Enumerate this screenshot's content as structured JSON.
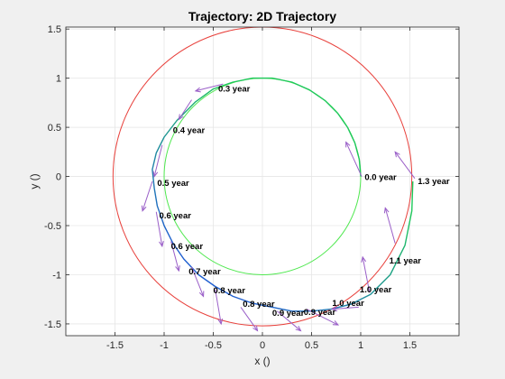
{
  "chart_data": {
    "type": "line",
    "title": "Trajectory: 2D Trajectory",
    "xlabel": "x ()",
    "ylabel": "y ()",
    "xlim": [
      -2.0,
      2.0
    ],
    "ylim": [
      -1.62,
      1.52
    ],
    "xticks": [
      -1.5,
      -1,
      -0.5,
      0,
      0.5,
      1,
      1.5
    ],
    "xtick_labels": [
      "-1.5",
      "-1",
      "-0.5",
      "0",
      "0.5",
      "1",
      "1.5"
    ],
    "yticks": [
      -1.5,
      -1,
      -0.5,
      0,
      0.5,
      1,
      1.5
    ],
    "ytick_labels": [
      "-1.5",
      "-1",
      "-0.5",
      "0",
      "0.5",
      "1",
      "1.5"
    ],
    "grid": true,
    "colors": {
      "outer_circle": "#e8413c",
      "inner_circle": "#4fe84f",
      "trajectory_start": "#1ec85a",
      "trajectory_end": "#1f5fd0",
      "arrows": "#9a5fc8",
      "axes_bg": "#ffffff",
      "grid": "#e6e6e6"
    },
    "series": [
      {
        "kind": "circle",
        "role": "outer",
        "center": [
          0,
          0
        ],
        "radius": 1.52
      },
      {
        "kind": "circle",
        "role": "inner",
        "center": [
          0,
          0
        ],
        "radius": 1.0
      },
      {
        "kind": "trajectory",
        "points": [
          [
            1.0,
            0.0
          ],
          [
            0.985,
            0.174
          ],
          [
            0.94,
            0.342
          ],
          [
            0.866,
            0.5
          ],
          [
            0.766,
            0.643
          ],
          [
            0.64,
            0.77
          ],
          [
            0.48,
            0.88
          ],
          [
            0.3,
            0.96
          ],
          [
            0.1,
            1.0
          ],
          [
            -0.1,
            1.0
          ],
          [
            -0.3,
            0.96
          ],
          [
            -0.5,
            0.89
          ],
          [
            -0.68,
            0.76
          ],
          [
            -0.87,
            0.57
          ],
          [
            -1.0,
            0.4
          ],
          [
            -1.08,
            0.24
          ],
          [
            -1.12,
            0.07
          ],
          [
            -1.1,
            -0.12
          ],
          [
            -1.07,
            -0.3
          ],
          [
            -1.0,
            -0.5
          ],
          [
            -0.91,
            -0.68
          ],
          [
            -0.8,
            -0.84
          ],
          [
            -0.65,
            -1.0
          ],
          [
            -0.48,
            -1.12
          ],
          [
            -0.3,
            -1.22
          ],
          [
            -0.1,
            -1.29
          ],
          [
            0.1,
            -1.33
          ],
          [
            0.3,
            -1.37
          ],
          [
            0.5,
            -1.37
          ],
          [
            0.7,
            -1.35
          ],
          [
            0.9,
            -1.3
          ],
          [
            1.1,
            -1.2
          ],
          [
            1.3,
            -1.0
          ],
          [
            1.45,
            -0.7
          ],
          [
            1.52,
            -0.35
          ],
          [
            1.53,
            -0.05
          ]
        ]
      }
    ],
    "arrows": [
      {
        "at": [
          1.01,
          0.0
        ],
        "delta": [
          -0.16,
          0.35
        ]
      },
      {
        "at": [
          1.55,
          -0.02
        ],
        "delta": [
          -0.2,
          0.27
        ]
      },
      {
        "at": [
          1.35,
          -0.68
        ],
        "delta": [
          -0.1,
          0.36
        ]
      },
      {
        "at": [
          1.09,
          -1.18
        ],
        "delta": [
          -0.07,
          0.36
        ]
      },
      {
        "at": [
          0.98,
          -1.33
        ],
        "delta": [
          -0.27,
          -0.02
        ]
      },
      {
        "at": [
          0.45,
          -1.35
        ],
        "delta": [
          0.32,
          -0.16
        ]
      },
      {
        "at": [
          0.15,
          -1.37
        ],
        "delta": [
          0.24,
          -0.2
        ]
      },
      {
        "at": [
          -0.22,
          -1.33
        ],
        "delta": [
          0.17,
          -0.24
        ]
      },
      {
        "at": [
          -0.48,
          -1.15
        ],
        "delta": [
          0.06,
          -0.35
        ]
      },
      {
        "at": [
          -0.72,
          -0.92
        ],
        "delta": [
          0.12,
          -0.3
        ]
      },
      {
        "at": [
          -0.93,
          -0.66
        ],
        "delta": [
          0.08,
          -0.3
        ]
      },
      {
        "at": [
          -1.08,
          -0.36
        ],
        "delta": [
          0.06,
          -0.35
        ]
      },
      {
        "at": [
          -1.12,
          -0.05
        ],
        "delta": [
          -0.1,
          -0.3
        ]
      },
      {
        "at": [
          -1.02,
          0.32
        ],
        "delta": [
          -0.08,
          -0.32
        ]
      },
      {
        "at": [
          -0.72,
          0.78
        ],
        "delta": [
          -0.13,
          -0.2
        ]
      },
      {
        "at": [
          -0.4,
          0.94
        ],
        "delta": [
          -0.28,
          -0.07
        ]
      }
    ],
    "annotations": [
      {
        "text": "0.0 year",
        "at": [
          1.04,
          -0.01
        ]
      },
      {
        "text": "1.3 year",
        "at": [
          1.58,
          -0.05
        ]
      },
      {
        "text": "1.1 year",
        "at": [
          1.29,
          -0.86
        ]
      },
      {
        "text": "1.0 year",
        "at": [
          0.99,
          -1.15
        ]
      },
      {
        "text": "1.0 year",
        "at": [
          0.71,
          -1.29
        ]
      },
      {
        "text": "0.9 year",
        "at": [
          0.42,
          -1.38
        ]
      },
      {
        "text": "0.9 year",
        "at": [
          0.1,
          -1.39
        ]
      },
      {
        "text": "0.8 year",
        "at": [
          -0.2,
          -1.3
        ]
      },
      {
        "text": "0.8 year",
        "at": [
          -0.5,
          -1.16
        ]
      },
      {
        "text": "0.7 year",
        "at": [
          -0.75,
          -0.97
        ]
      },
      {
        "text": "0.6 year",
        "at": [
          -0.93,
          -0.71
        ]
      },
      {
        "text": "0.6 year",
        "at": [
          -1.05,
          -0.4
        ]
      },
      {
        "text": "0.5 year",
        "at": [
          -1.07,
          -0.07
        ]
      },
      {
        "text": "0.4 year",
        "at": [
          -0.91,
          0.47
        ]
      },
      {
        "text": "0.3 year",
        "at": [
          -0.45,
          0.89
        ]
      }
    ]
  }
}
